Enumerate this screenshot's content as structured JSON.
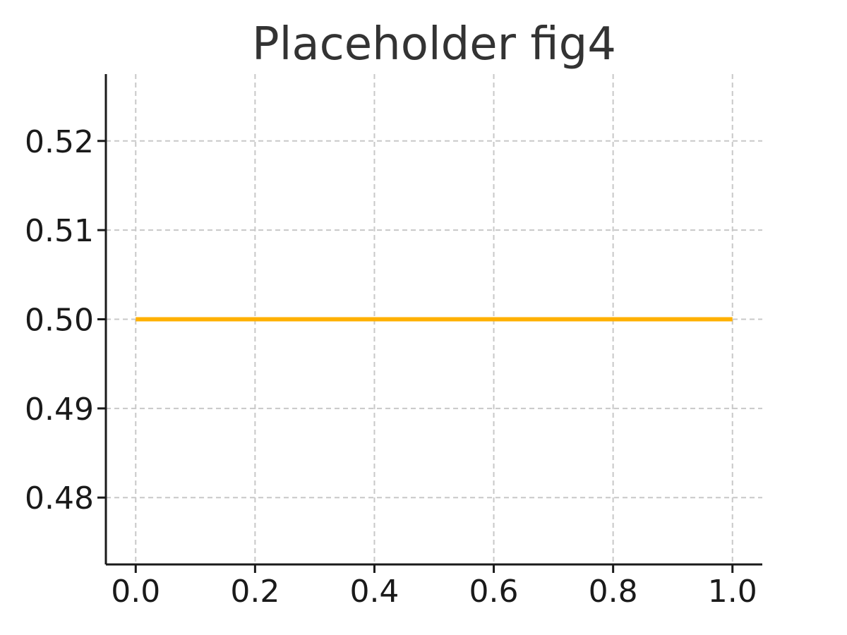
{
  "chart_data": {
    "type": "line",
    "title": "Placeholder fig4",
    "xlabel": "",
    "ylabel": "",
    "xlim": [
      -0.05,
      1.05
    ],
    "ylim": [
      0.4725,
      0.5275
    ],
    "xticks": [
      0.0,
      0.2,
      0.4,
      0.6,
      0.8,
      1.0
    ],
    "xtick_labels": [
      "0.0",
      "0.2",
      "0.4",
      "0.6",
      "0.8",
      "1.0"
    ],
    "yticks": [
      0.48,
      0.49,
      0.5,
      0.51,
      0.52
    ],
    "ytick_labels": [
      "0.48",
      "0.49",
      "0.50",
      "0.51",
      "0.52"
    ],
    "grid": true,
    "series": [
      {
        "color": "#ffb000",
        "x": [
          0.0,
          1.0
        ],
        "y": [
          0.5,
          0.5
        ]
      }
    ]
  }
}
